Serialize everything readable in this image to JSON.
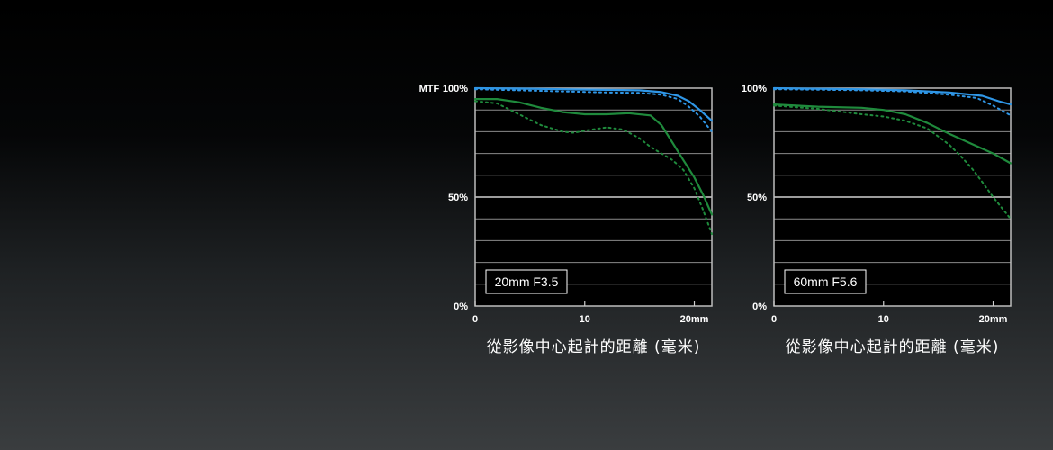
{
  "colors": {
    "sagittal_low": "#2f96e6",
    "low_freq": "#2f96e6",
    "high_freq": "#1f8a3c",
    "grid": "#8a8a8a",
    "frame": "#bdbdbd"
  },
  "chart_data": [
    {
      "type": "line",
      "lens_label": "20mm F3.5",
      "y_title": "MTF",
      "y_ticks": [
        "100%",
        "50%",
        "0%"
      ],
      "x_ticks": [
        "0",
        "10",
        "20mm"
      ],
      "xlabel": "從影像中心起計的距離 (毫米)",
      "xlim": [
        0,
        21.6
      ],
      "ylim": [
        0,
        100
      ],
      "series": [
        {
          "color": "#2f96e6",
          "dash": "solid",
          "x": [
            0,
            4,
            8,
            12,
            15,
            17,
            18.5,
            19.5,
            20.5,
            21.6
          ],
          "y": [
            100,
            99.8,
            99.5,
            99.2,
            99,
            98.2,
            96.5,
            94,
            90,
            85
          ]
        },
        {
          "color": "#2f96e6",
          "dash": "dotted",
          "x": [
            0,
            4,
            8,
            12,
            15,
            17,
            18.5,
            19.5,
            20.5,
            21.6
          ],
          "y": [
            99.5,
            99,
            98.5,
            98,
            97.8,
            97,
            95,
            91.5,
            87,
            80
          ]
        },
        {
          "color": "#1f8a3c",
          "dash": "solid",
          "x": [
            0,
            2,
            4,
            6,
            8,
            10,
            12,
            14,
            16,
            17,
            18,
            19,
            20,
            20.8,
            21.6
          ],
          "y": [
            95,
            95,
            93.5,
            91,
            89,
            88,
            88,
            88.5,
            87.5,
            83,
            75,
            67,
            59,
            51,
            42
          ]
        },
        {
          "color": "#1f8a3c",
          "dash": "dotted",
          "x": [
            0,
            2,
            4,
            6,
            8,
            9,
            10,
            12,
            13.5,
            15,
            16,
            17,
            18,
            19,
            20,
            20.8,
            21.6
          ],
          "y": [
            94,
            93,
            88,
            83,
            80,
            79.5,
            80.5,
            82,
            81,
            77,
            73,
            70,
            67,
            62.5,
            54,
            44,
            33
          ]
        }
      ]
    },
    {
      "type": "line",
      "lens_label": "60mm F5.6",
      "y_title": "",
      "y_ticks": [
        "100%",
        "50%",
        "0%"
      ],
      "x_ticks": [
        "0",
        "10",
        "20mm"
      ],
      "xlabel": "從影像中心起計的距離 (毫米)",
      "xlim": [
        0,
        21.6
      ],
      "ylim": [
        0,
        100
      ],
      "series": [
        {
          "color": "#2f96e6",
          "dash": "solid",
          "x": [
            0,
            4,
            8,
            12,
            16,
            19,
            20.5,
            21.6
          ],
          "y": [
            100,
            99.7,
            99.5,
            99,
            98,
            96.5,
            94,
            92.5
          ]
        },
        {
          "color": "#2f96e6",
          "dash": "dotted",
          "x": [
            0,
            4,
            8,
            12,
            16,
            18.5,
            20,
            21.6
          ],
          "y": [
            99.5,
            99.3,
            99,
            98.5,
            97,
            95.5,
            92,
            87.5
          ]
        },
        {
          "color": "#1f8a3c",
          "dash": "solid",
          "x": [
            0,
            4,
            8,
            10,
            12,
            14,
            16,
            18,
            20,
            21.6
          ],
          "y": [
            92.5,
            91.5,
            91,
            90,
            88,
            84,
            79,
            74.5,
            70,
            65.5
          ]
        },
        {
          "color": "#1f8a3c",
          "dash": "dotted",
          "x": [
            0,
            4,
            8,
            10,
            12,
            14,
            16,
            17,
            18,
            19,
            20,
            21.6
          ],
          "y": [
            92,
            90.5,
            88,
            87,
            85,
            81.5,
            74,
            69,
            63.5,
            57,
            50,
            40
          ]
        }
      ]
    }
  ]
}
